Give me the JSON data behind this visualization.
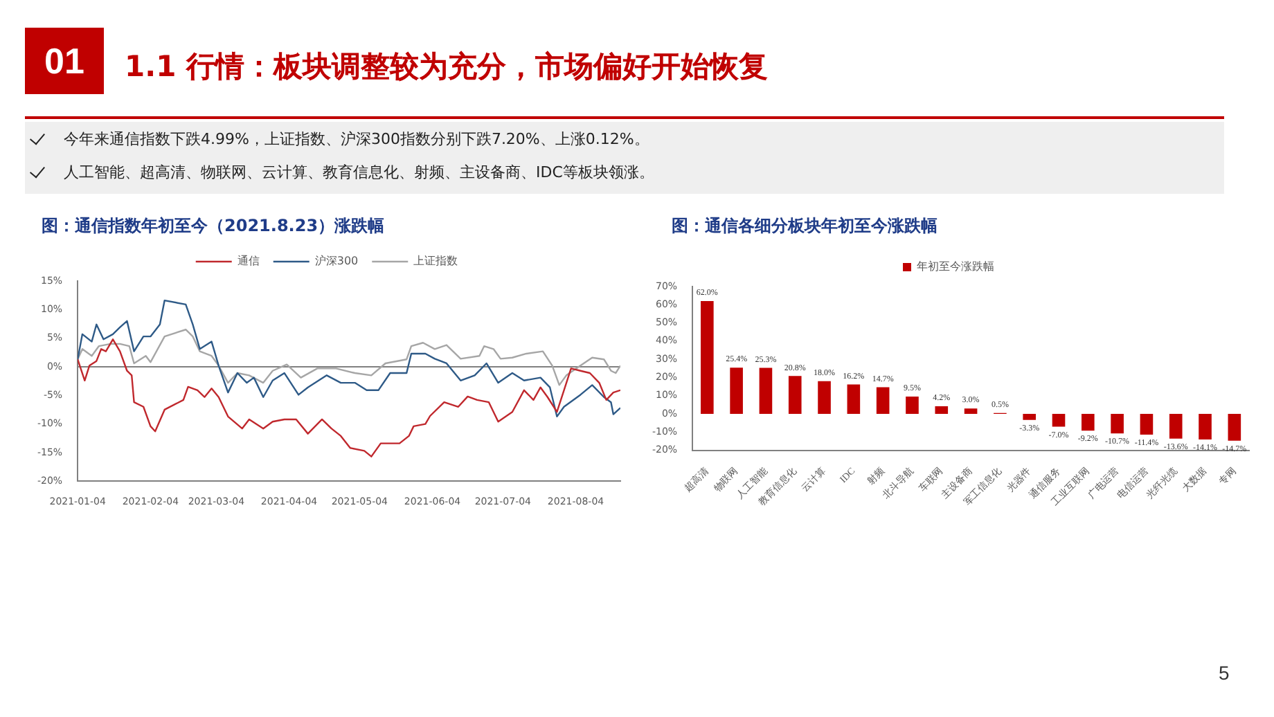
{
  "chart_data": [
    {
      "type": "other",
      "title": "1.1 行情：板块调整较为充分，市场偏好开始恢复",
      "annotations": [
        "01",
        "今年来通信指数下跌4.99%，上证指数、沪深300指数分别下跌7.20%、上涨0.12%。",
        "人工智能、超高清、物联网、云计算、教育信息化、射频、主设备商、IDC等板块领涨。",
        "5"
      ]
    },
    {
      "type": "line",
      "title": "图：通信指数年初至今（2021.8.23）涨跌幅",
      "legend": "top",
      "grid": false,
      "marker": "none",
      "line_style": "solid",
      "xlim": [
        "2021-01-04",
        "2021-08-23"
      ],
      "xticks": [
        "2021-01-04",
        "2021-02-04",
        "2021-03-04",
        "2021-04-04",
        "2021-05-04",
        "2021-06-04",
        "2021-07-04",
        "2021-08-04"
      ],
      "ylim": [
        -20,
        15
      ],
      "yticks": [
        {
          "value": -20,
          "label": "-20%"
        },
        {
          "value": -15,
          "label": "-15%"
        },
        {
          "value": -10,
          "label": "-10%"
        },
        {
          "value": -5,
          "label": "-5%"
        },
        {
          "value": 0,
          "label": "0%"
        },
        {
          "value": 5,
          "label": "5%"
        },
        {
          "value": 10,
          "label": "10%"
        },
        {
          "value": 15,
          "label": "15%"
        }
      ],
      "ref_lines": [
        {
          "axis": "y",
          "value": 0,
          "color": "#808080"
        }
      ],
      "series": [
        {
          "name": "通信",
          "color": "#c0282d",
          "x": [
            "2021-01-04",
            "2021-01-07",
            "2021-01-09",
            "2021-01-12",
            "2021-01-14",
            "2021-01-16",
            "2021-01-19",
            "2021-01-22",
            "2021-01-25",
            "2021-01-27",
            "2021-01-28",
            "2021-02-01",
            "2021-02-04",
            "2021-02-06",
            "2021-02-10",
            "2021-02-18",
            "2021-02-20",
            "2021-02-24",
            "2021-02-27",
            "2021-03-02",
            "2021-03-05",
            "2021-03-09",
            "2021-03-15",
            "2021-03-18",
            "2021-03-24",
            "2021-03-28",
            "2021-04-02",
            "2021-04-07",
            "2021-04-12",
            "2021-04-18",
            "2021-04-22",
            "2021-04-26",
            "2021-04-30",
            "2021-05-06",
            "2021-05-09",
            "2021-05-13",
            "2021-05-21",
            "2021-05-25",
            "2021-05-27",
            "2021-06-01",
            "2021-06-03",
            "2021-06-09",
            "2021-06-15",
            "2021-06-19",
            "2021-06-23",
            "2021-06-28",
            "2021-07-02",
            "2021-07-08",
            "2021-07-13",
            "2021-07-17",
            "2021-07-20",
            "2021-07-23",
            "2021-07-27",
            "2021-07-30",
            "2021-08-02",
            "2021-08-06",
            "2021-08-10",
            "2021-08-14",
            "2021-08-17",
            "2021-08-20",
            "2021-08-23"
          ],
          "values": [
            1.3,
            -2.4,
            0.2,
            1,
            3.1,
            2.7,
            4.8,
            2.7,
            -0.7,
            -1.5,
            -6.2,
            -7,
            -10.4,
            -11.3,
            -7.5,
            -5.8,
            -3.5,
            -4.1,
            -5.3,
            -3.8,
            -5.3,
            -8.7,
            -10.8,
            -9.2,
            -10.8,
            -9.6,
            -9.2,
            -9.2,
            -11.7,
            -9.2,
            -10.8,
            -12.1,
            -14.2,
            -14.7,
            -15.7,
            -13.4,
            -13.4,
            -12.1,
            -10.4,
            -10,
            -8.6,
            -6.2,
            -7,
            -5.2,
            -5.8,
            -6.2,
            -9.6,
            -7.9,
            -4.1,
            -5.8,
            -3.6,
            -5.3,
            -7.9,
            -4.1,
            -0.3,
            -0.7,
            -1.1,
            -2.8,
            -5.8,
            -4.5,
            -4.1
          ]
        },
        {
          "name": "沪深300",
          "color": "#2e5a87",
          "x": [
            "2021-01-04",
            "2021-01-06",
            "2021-01-10",
            "2021-01-12",
            "2021-01-15",
            "2021-01-19",
            "2021-01-22",
            "2021-01-25",
            "2021-01-28",
            "2021-02-01",
            "2021-02-04",
            "2021-02-08",
            "2021-02-10",
            "2021-02-19",
            "2021-02-22",
            "2021-02-25",
            "2021-03-02",
            "2021-03-05",
            "2021-03-09",
            "2021-03-13",
            "2021-03-17",
            "2021-03-20",
            "2021-03-24",
            "2021-03-28",
            "2021-04-02",
            "2021-04-08",
            "2021-04-12",
            "2021-04-20",
            "2021-04-26",
            "2021-05-02",
            "2021-05-07",
            "2021-05-12",
            "2021-05-17",
            "2021-05-24",
            "2021-05-26",
            "2021-06-01",
            "2021-06-05",
            "2021-06-10",
            "2021-06-16",
            "2021-06-22",
            "2021-06-27",
            "2021-07-02",
            "2021-07-08",
            "2021-07-13",
            "2021-07-20",
            "2021-07-24",
            "2021-07-27",
            "2021-07-30",
            "2021-08-06",
            "2021-08-11",
            "2021-08-16",
            "2021-08-19",
            "2021-08-20",
            "2021-08-23"
          ],
          "values": [
            1.3,
            5.7,
            4.4,
            7.4,
            4.8,
            5.7,
            6.9,
            8,
            2.7,
            5.3,
            5.3,
            7.4,
            11.6,
            10.9,
            7.4,
            3.1,
            4.4,
            0.2,
            -4.5,
            -1.1,
            -2.8,
            -1.9,
            -5.3,
            -2.4,
            -1.1,
            -4.9,
            -3.6,
            -1.5,
            -2.8,
            -2.8,
            -4.1,
            -4.1,
            -1.1,
            -1.1,
            2.3,
            2.3,
            1.4,
            0.6,
            -2.4,
            -1.5,
            0.6,
            -2.8,
            -1.1,
            -2.4,
            -1.9,
            -3.6,
            -8.7,
            -7,
            -4.9,
            -3.2,
            -5.3,
            -6.2,
            -8.3,
            -7.2
          ]
        },
        {
          "name": "上证指数",
          "color": "#a6a6a6",
          "x": [
            "2021-01-04",
            "2021-01-06",
            "2021-01-10",
            "2021-01-13",
            "2021-01-18",
            "2021-01-22",
            "2021-01-26",
            "2021-01-28",
            "2021-02-02",
            "2021-02-04",
            "2021-02-10",
            "2021-02-19",
            "2021-02-22",
            "2021-02-25",
            "2021-03-02",
            "2021-03-05",
            "2021-03-09",
            "2021-03-13",
            "2021-03-18",
            "2021-03-24",
            "2021-03-28",
            "2021-04-03",
            "2021-04-09",
            "2021-04-16",
            "2021-04-24",
            "2021-05-02",
            "2021-05-09",
            "2021-05-15",
            "2021-05-24",
            "2021-05-26",
            "2021-05-31",
            "2021-06-05",
            "2021-06-10",
            "2021-06-16",
            "2021-06-24",
            "2021-06-26",
            "2021-06-30",
            "2021-07-03",
            "2021-07-08",
            "2021-07-14",
            "2021-07-21",
            "2021-07-25",
            "2021-07-28",
            "2021-07-31",
            "2021-08-06",
            "2021-08-11",
            "2021-08-16",
            "2021-08-19",
            "2021-08-21",
            "2021-08-23"
          ],
          "values": [
            1.3,
            3.1,
            1.9,
            3.6,
            4,
            4,
            3.6,
            0.6,
            1.9,
            0.8,
            5.3,
            6.5,
            5.3,
            2.7,
            1.9,
            0.2,
            -2.8,
            -1.1,
            -1.5,
            -2.8,
            -0.7,
            0.4,
            -1.9,
            -0.3,
            -0.3,
            -1.1,
            -1.5,
            0.6,
            1.3,
            3.6,
            4.2,
            3.1,
            3.8,
            1.4,
            1.9,
            3.6,
            3.1,
            1.4,
            1.6,
            2.3,
            2.7,
            0.2,
            -3.2,
            -1.5,
            0.2,
            1.6,
            1.3,
            -0.7,
            -1.1,
            0.2
          ]
        }
      ]
    },
    {
      "type": "bar",
      "title": "图：通信各细分板块年初至今涨跌幅",
      "legend": "top",
      "grid": false,
      "categories": [
        "超高清",
        "物联网",
        "人工智能",
        "教育信息化",
        "云计算",
        "IDC",
        "射频",
        "北斗导航",
        "车联网",
        "主设备商",
        "军工信息化",
        "光器件",
        "通信服务",
        "工业互联网",
        "广电运营",
        "电信运营",
        "光纤光缆",
        "大数据",
        "专网"
      ],
      "ylim": [
        -20,
        70
      ],
      "yticks": [
        {
          "value": -20,
          "label": "-20%"
        },
        {
          "value": -10,
          "label": "-10%"
        },
        {
          "value": 0,
          "label": "0%"
        },
        {
          "value": 10,
          "label": "10%"
        },
        {
          "value": 20,
          "label": "20%"
        },
        {
          "value": 30,
          "label": "30%"
        },
        {
          "value": 40,
          "label": "40%"
        },
        {
          "value": 50,
          "label": "50%"
        },
        {
          "value": 60,
          "label": "60%"
        },
        {
          "value": 70,
          "label": "70%"
        }
      ],
      "series": [
        {
          "name": "年初至今涨跌幅",
          "color": "#c00000",
          "values": [
            62.0,
            25.4,
            25.3,
            20.8,
            18.0,
            16.2,
            14.7,
            9.5,
            4.2,
            3.0,
            0.5,
            -3.3,
            -7.0,
            -9.2,
            -10.7,
            -11.4,
            -13.6,
            -14.1,
            -14.7
          ],
          "value_labels": [
            "62.0%",
            "25.4%",
            "25.3%",
            "20.8%",
            "18.0%",
            "16.2%",
            "14.7%",
            "9.5%",
            "4.2%",
            "3.0%",
            "0.5%",
            "-3.3%",
            "-7.0%",
            "-9.2%",
            "-10.7%",
            "-11.4%",
            "-13.6%",
            "-14.1%",
            "-14.7%"
          ]
        }
      ]
    }
  ]
}
